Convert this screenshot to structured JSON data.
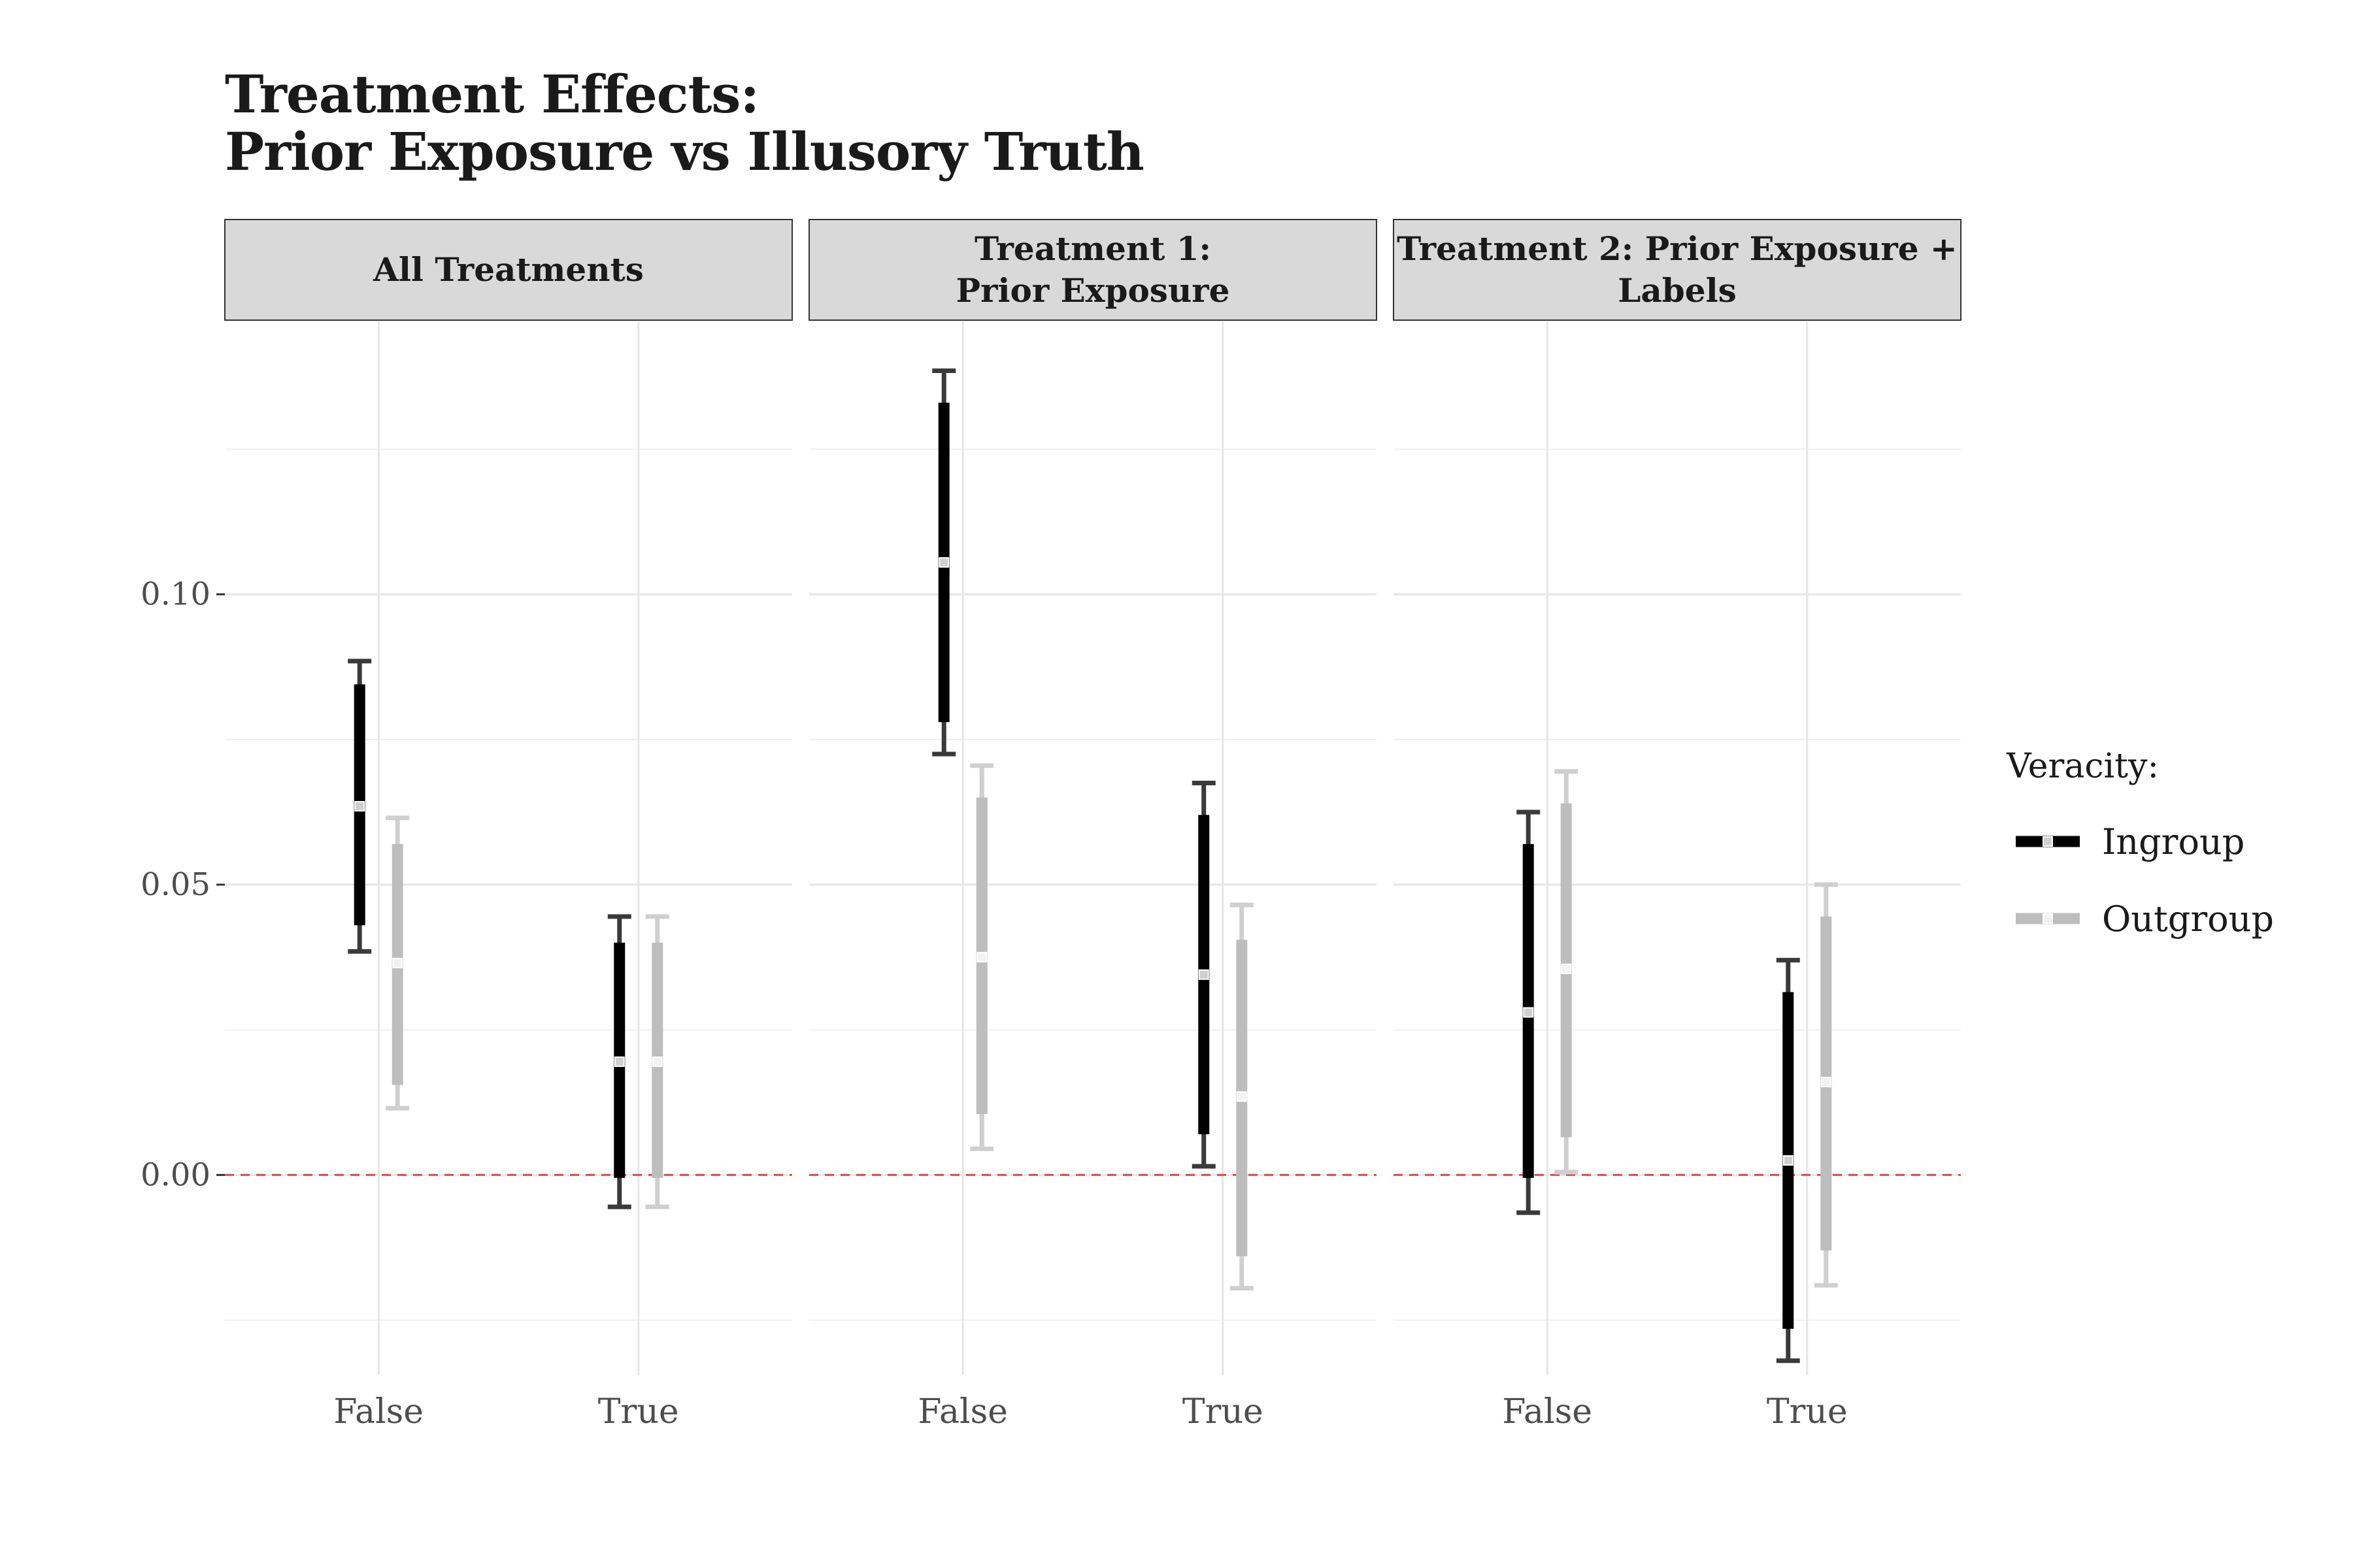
{
  "title_lines": [
    "Treatment Effects:",
    "Prior Exposure vs Illusory Truth"
  ],
  "chart_data": {
    "type": "errorbar",
    "ylim": [
      -0.0345,
      0.147
    ],
    "y_ticks": [
      0.0,
      0.05,
      0.1
    ],
    "y_tick_labels": [
      "0.00",
      "0.05",
      "0.10"
    ],
    "categories": [
      "False",
      "True"
    ],
    "reference_line": {
      "y": 0.0,
      "color": "#e8474a",
      "style": "dashed"
    },
    "grid": true,
    "legend": {
      "title": "Veracity:",
      "placement": "right",
      "entries": [
        {
          "label": "Ingroup",
          "color": "#000000"
        },
        {
          "label": "Outgroup",
          "color": "#bdbdbd"
        }
      ]
    },
    "panels": [
      {
        "strip_lines": [
          "All Treatments"
        ],
        "series": [
          {
            "name": "Ingroup",
            "points": [
              {
                "x": "False",
                "estimate": 0.0635,
                "inner_lo": 0.043,
                "inner_hi": 0.0845,
                "outer_lo": 0.0385,
                "outer_hi": 0.0885
              },
              {
                "x": "True",
                "estimate": 0.0195,
                "inner_lo": -0.0005,
                "inner_hi": 0.04,
                "outer_lo": -0.0055,
                "outer_hi": 0.0445
              }
            ]
          },
          {
            "name": "Outgroup",
            "points": [
              {
                "x": "False",
                "estimate": 0.0365,
                "inner_lo": 0.0155,
                "inner_hi": 0.057,
                "outer_lo": 0.0115,
                "outer_hi": 0.0615
              },
              {
                "x": "True",
                "estimate": 0.0195,
                "inner_lo": -0.0005,
                "inner_hi": 0.04,
                "outer_lo": -0.0055,
                "outer_hi": 0.0445
              }
            ]
          }
        ]
      },
      {
        "strip_lines": [
          "Treatment 1:",
          "Prior Exposure"
        ],
        "series": [
          {
            "name": "Ingroup",
            "points": [
              {
                "x": "False",
                "estimate": 0.1055,
                "inner_lo": 0.078,
                "inner_hi": 0.133,
                "outer_lo": 0.0725,
                "outer_hi": 0.1385
              },
              {
                "x": "True",
                "estimate": 0.0345,
                "inner_lo": 0.007,
                "inner_hi": 0.062,
                "outer_lo": 0.0015,
                "outer_hi": 0.0675
              }
            ]
          },
          {
            "name": "Outgroup",
            "points": [
              {
                "x": "False",
                "estimate": 0.0375,
                "inner_lo": 0.0105,
                "inner_hi": 0.065,
                "outer_lo": 0.0045,
                "outer_hi": 0.0705
              },
              {
                "x": "True",
                "estimate": 0.0135,
                "inner_lo": -0.014,
                "inner_hi": 0.0405,
                "outer_lo": -0.0195,
                "outer_hi": 0.0465
              }
            ]
          }
        ]
      },
      {
        "strip_lines": [
          "Treatment 2: Prior Exposure +",
          "Labels"
        ],
        "series": [
          {
            "name": "Ingroup",
            "points": [
              {
                "x": "False",
                "estimate": 0.028,
                "inner_lo": -0.0005,
                "inner_hi": 0.057,
                "outer_lo": -0.0065,
                "outer_hi": 0.0625
              },
              {
                "x": "True",
                "estimate": 0.0025,
                "inner_lo": -0.0265,
                "inner_hi": 0.0315,
                "outer_lo": -0.032,
                "outer_hi": 0.037
              }
            ]
          },
          {
            "name": "Outgroup",
            "points": [
              {
                "x": "False",
                "estimate": 0.0355,
                "inner_lo": 0.0065,
                "inner_hi": 0.064,
                "outer_lo": 0.0005,
                "outer_hi": 0.0695
              },
              {
                "x": "True",
                "estimate": 0.016,
                "inner_lo": -0.013,
                "inner_hi": 0.0445,
                "outer_lo": -0.019,
                "outer_hi": 0.05
              }
            ]
          }
        ]
      }
    ]
  }
}
